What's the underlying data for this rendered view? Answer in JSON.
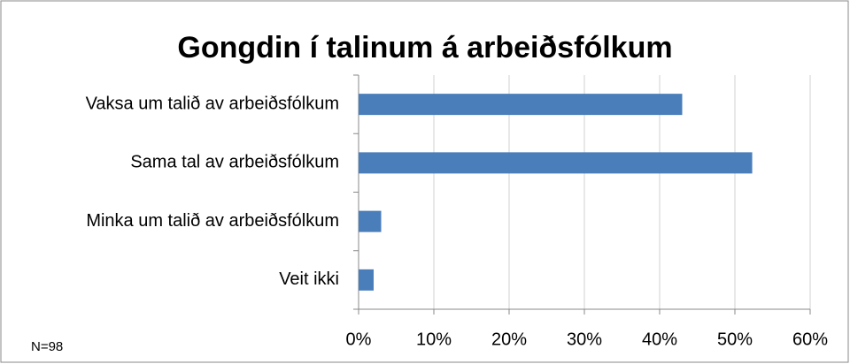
{
  "chart_data": {
    "type": "bar",
    "orientation": "horizontal",
    "title": "Gongdin í talinum á arbeiðsfólkum",
    "categories": [
      "Vaksa um talið av arbeiðsfólkum",
      "Sama tal av arbeiðsfólkum",
      "Minka um talið av arbeiðsfólkum",
      "Veit ikki"
    ],
    "values": [
      43,
      52.3,
      3,
      2
    ],
    "color": "#4a7ebb",
    "xlim": [
      0,
      60
    ],
    "xticks": [
      {
        "value": 0,
        "label": "0%"
      },
      {
        "value": 10,
        "label": "10%"
      },
      {
        "value": 20,
        "label": "20%"
      },
      {
        "value": 30,
        "label": "30%"
      },
      {
        "value": 40,
        "label": "40%"
      },
      {
        "value": 50,
        "label": "50%"
      },
      {
        "value": 60,
        "label": "60%"
      }
    ],
    "grid": true,
    "annotation": "N=98"
  }
}
